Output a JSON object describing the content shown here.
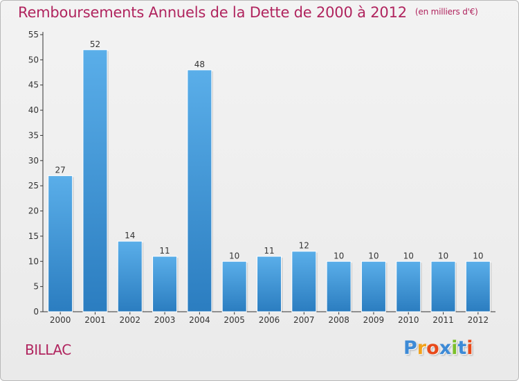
{
  "chart_data": {
    "type": "bar",
    "title": "Remboursements Annuels de la Dette de 2000 à 2012",
    "subtitle": "(en milliers d'€)",
    "categories": [
      "2000",
      "2001",
      "2002",
      "2003",
      "2004",
      "2005",
      "2006",
      "2007",
      "2008",
      "2009",
      "2010",
      "2011",
      "2012"
    ],
    "values": [
      27,
      52,
      14,
      11,
      48,
      10,
      11,
      12,
      10,
      10,
      10,
      10,
      10
    ],
    "ylim": [
      0,
      55
    ],
    "yticks": [
      0,
      5,
      10,
      15,
      20,
      25,
      30,
      35,
      40,
      45,
      50,
      55
    ],
    "grid": false,
    "data_labels": true,
    "bar_color": "#3f95d8"
  },
  "place_name": "BILLAC",
  "logo": {
    "letters": [
      "P",
      "r",
      "o",
      "x",
      "i",
      "t",
      "i"
    ],
    "colors": [
      "#3d8ad6",
      "#f1a21c",
      "#e84a1a",
      "#3d8ad6",
      "#7bbf2a",
      "#3d8ad6",
      "#e84a1a"
    ]
  },
  "colors": {
    "title": "#b0245e",
    "axis": "#333333"
  }
}
